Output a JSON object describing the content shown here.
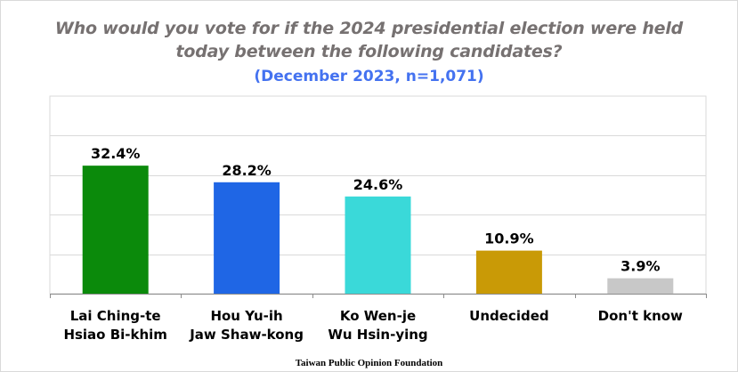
{
  "chart_data": {
    "type": "bar",
    "title_lines": [
      "Who would you vote for if the 2024 presidential election were held",
      "today between the following candidates?"
    ],
    "subtitle": "(December 2023, n=1,071)",
    "categories": [
      [
        "Lai Ching-te",
        "Hsiao Bi-khim"
      ],
      [
        "Hou Yu-ih",
        "Jaw Shaw-kong"
      ],
      [
        "Ko Wen-je",
        "Wu Hsin-ying"
      ],
      [
        "Undecided"
      ],
      [
        "Don't know"
      ]
    ],
    "values": [
      32.4,
      28.2,
      24.6,
      10.9,
      3.9
    ],
    "value_labels": [
      "32.4%",
      "28.2%",
      "24.6%",
      "10.9%",
      "3.9%"
    ],
    "colors": [
      "#0b8a0b",
      "#1f66e5",
      "#3ad9d9",
      "#c99a06",
      "#c8c8c8"
    ],
    "ylim": [
      0,
      50
    ],
    "grid": true,
    "legend": "none",
    "xlabel": "",
    "ylabel": ""
  },
  "source": "Taiwan Public Opinion Foundation"
}
